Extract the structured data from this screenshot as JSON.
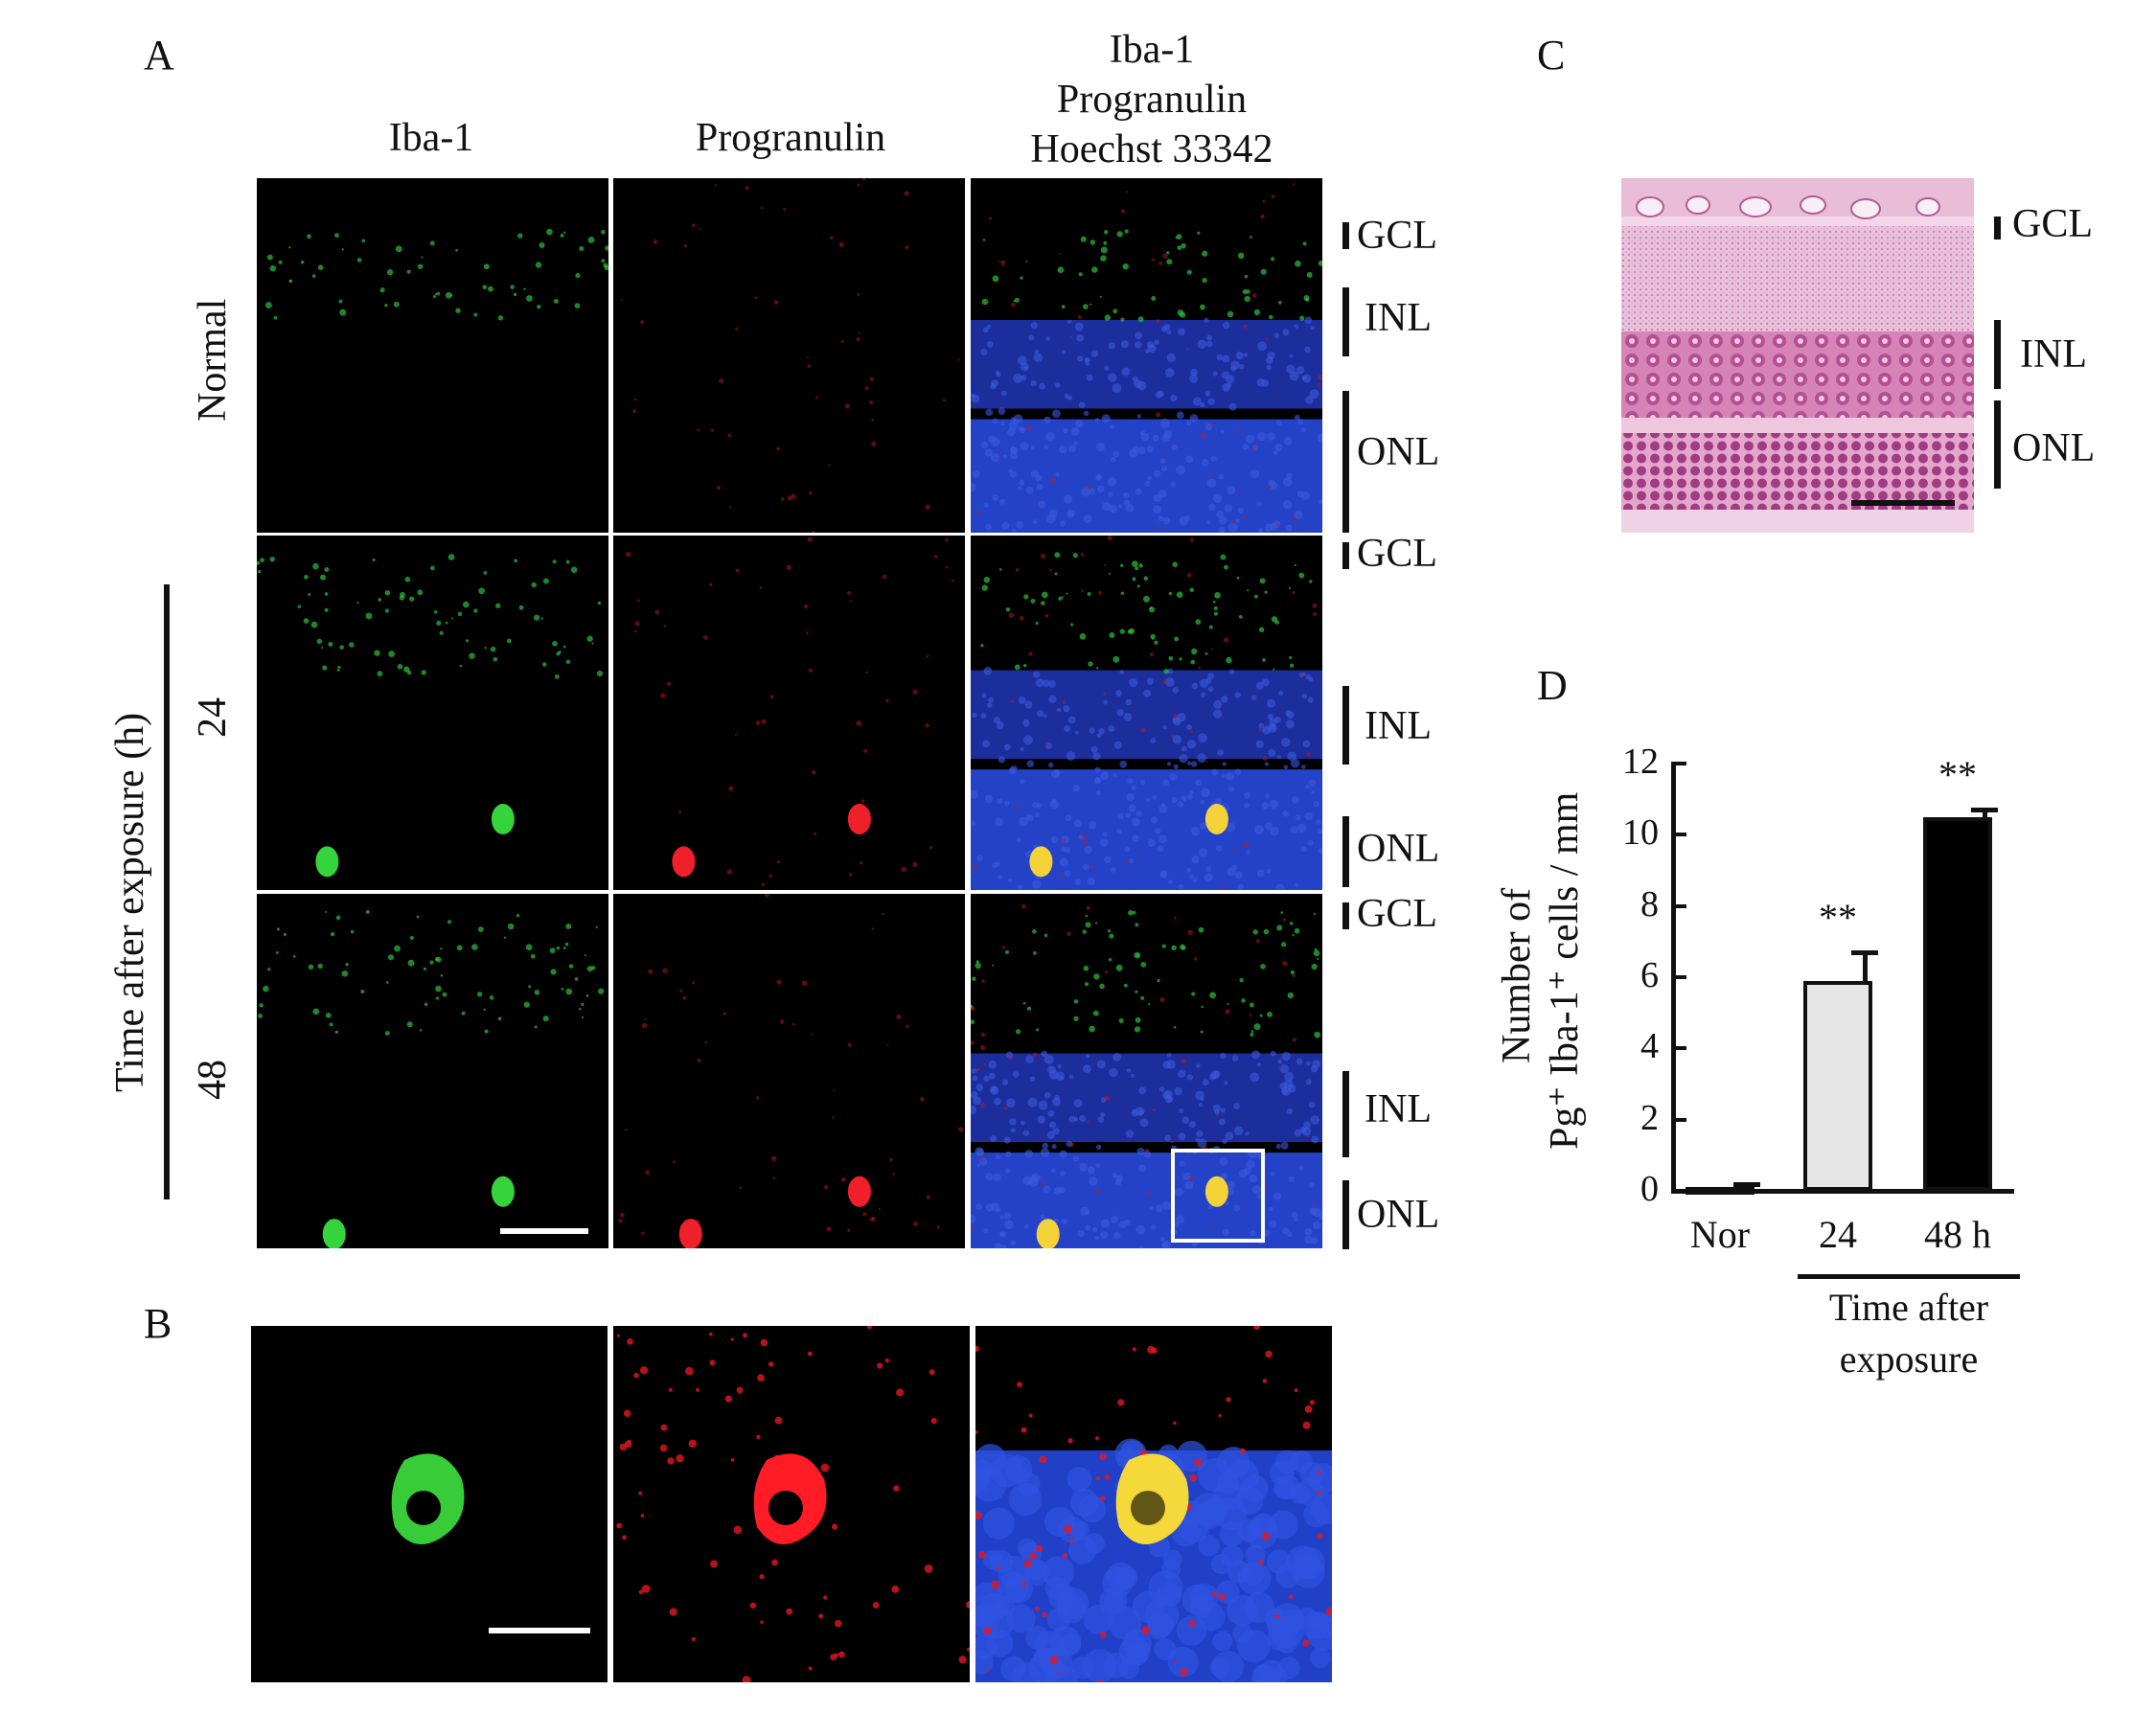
{
  "labels": {
    "A": "A",
    "B": "B",
    "C": "C",
    "D": "D"
  },
  "panelA": {
    "col_headers": [
      "Iba-1",
      "Progranulin",
      "Iba-1\nProgranulin\nHoechst 33342"
    ],
    "row_labels": [
      "Normal",
      "24",
      "48"
    ],
    "side_axis_label": "Time after exposure (h)",
    "layers": [
      "GCL",
      "INL",
      "ONL"
    ]
  },
  "panelC": {
    "layers": [
      "GCL",
      "INL",
      "ONL"
    ]
  },
  "chart_data": {
    "type": "bar",
    "categories": [
      "Nor",
      "24",
      "48 h"
    ],
    "values": [
      0.1,
      5.9,
      10.5
    ],
    "errors": [
      0.1,
      0.8,
      0.2
    ],
    "significance": [
      "",
      "**",
      "**"
    ],
    "bar_colors": [
      "#000000",
      "#e6e6e6",
      "#000000"
    ],
    "ylabel_line1": "Number of",
    "ylabel_line2": "Pg⁺ Iba-1⁺ cells / mm",
    "xgroup_label": "Time after\nexposure",
    "ylim": [
      0,
      12
    ],
    "yticks": [
      0,
      2,
      4,
      6,
      8,
      10,
      12
    ]
  }
}
